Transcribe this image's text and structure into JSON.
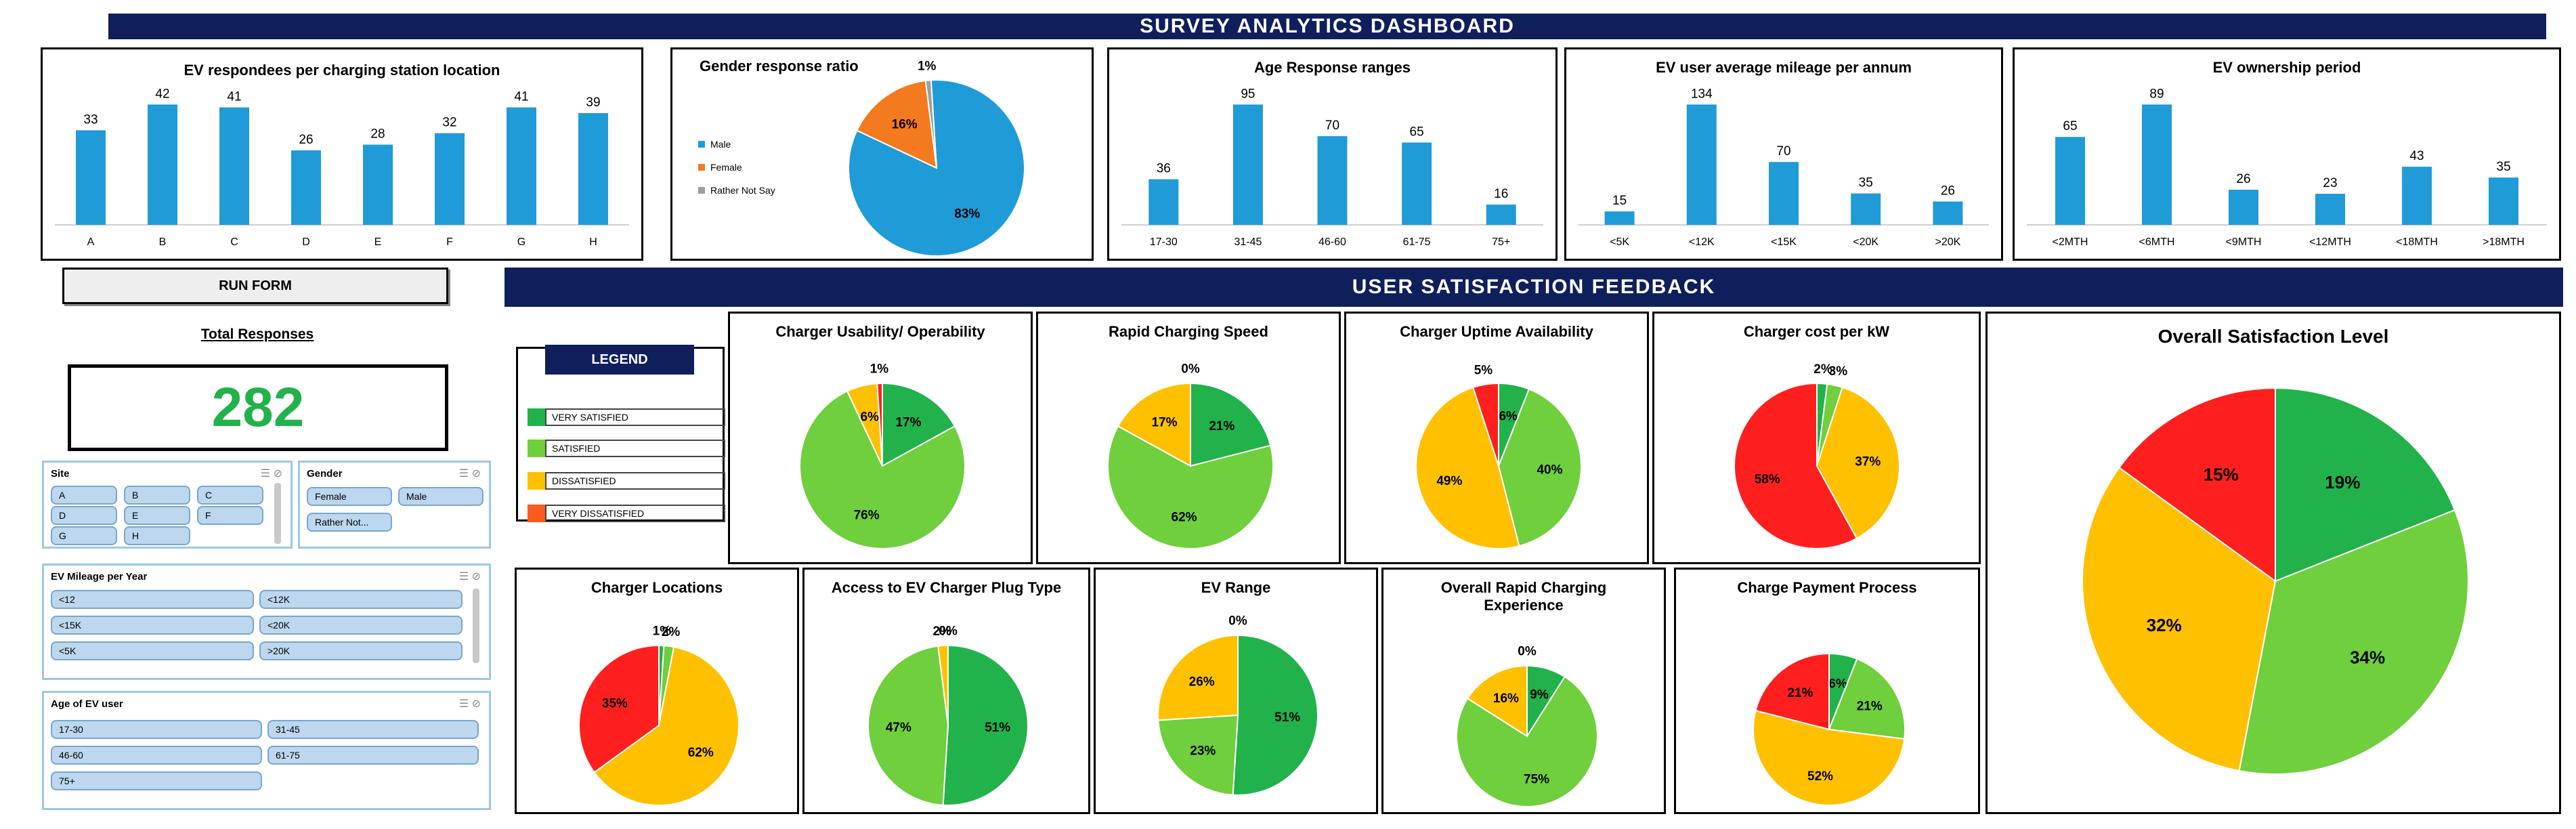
{
  "header": {
    "title": "SURVEY ANALYTICS DASHBOARD"
  },
  "feedback_banner": {
    "title": "USER SATISFACTION FEEDBACK"
  },
  "run_form": {
    "label": "RUN FORM"
  },
  "total": {
    "label": "Total Responses",
    "value": "282"
  },
  "colors": {
    "navy": "#0f1f5c",
    "bar": "#1f9bd8",
    "very_satisfied": "#22b24c",
    "satisfied": "#6fcf3c",
    "dissatisfied": "#ffc000",
    "very_dissatisfied": "#ff1f1f"
  },
  "legend": {
    "title": "LEGEND",
    "items": [
      {
        "label": "VERY SATISFIED",
        "color": "#22b24c"
      },
      {
        "label": "SATISFIED",
        "color": "#6fcf3c"
      },
      {
        "label": "DISSATISFIED",
        "color": "#ffc000"
      },
      {
        "label": "VERY DISSATISFIED",
        "color": "#ff5a1f"
      }
    ]
  },
  "slicers": {
    "site": {
      "title": "Site",
      "items": [
        "A",
        "B",
        "C",
        "D",
        "E",
        "F",
        "G",
        "H"
      ]
    },
    "gender": {
      "title": "Gender",
      "items": [
        "Female",
        "Male",
        "Rather Not..."
      ]
    },
    "mileage": {
      "title": "EV Mileage per Year",
      "items": [
        "<12",
        "<12K",
        "<15K",
        "<20K",
        "<5K",
        ">20K"
      ]
    },
    "age": {
      "title": "Age of EV user",
      "items": [
        "17-30",
        "31-45",
        "46-60",
        "61-75",
        "75+"
      ]
    }
  },
  "chart_data": [
    {
      "id": "station",
      "type": "bar",
      "title": "EV respondees  per charging station location",
      "categories": [
        "A",
        "B",
        "C",
        "D",
        "E",
        "F",
        "G",
        "H"
      ],
      "values": [
        33,
        42,
        41,
        26,
        28,
        32,
        41,
        39
      ]
    },
    {
      "id": "gender",
      "type": "pie",
      "title": "Gender response ratio",
      "slices": [
        {
          "label": "Male",
          "value": 83,
          "text": "83%",
          "color": "#1f9bd8"
        },
        {
          "label": "Female",
          "value": 16,
          "text": "16%",
          "color": "#f47a1f"
        },
        {
          "label": "Rather Not Say",
          "value": 1,
          "text": "1%",
          "color": "#9e9e9e"
        }
      ]
    },
    {
      "id": "age",
      "type": "bar",
      "title": "Age Response ranges",
      "categories": [
        "17-30",
        "31-45",
        "46-60",
        "61-75",
        "75+"
      ],
      "values": [
        36,
        95,
        70,
        65,
        16
      ]
    },
    {
      "id": "mileage",
      "type": "bar",
      "title": "EV user average mileage per annum",
      "categories": [
        "<5K",
        "<12K",
        "<15K",
        "<20K",
        ">20K"
      ],
      "values": [
        15,
        134,
        70,
        35,
        26
      ]
    },
    {
      "id": "ownership",
      "type": "bar",
      "title": "EV ownership period",
      "categories": [
        "<2MTH",
        "<6MTH",
        "<9MTH",
        "<12MTH",
        "<18MTH",
        ">18MTH"
      ],
      "values": [
        65,
        89,
        26,
        23,
        43,
        35
      ]
    },
    {
      "id": "usability",
      "type": "pie",
      "title": "Charger Usability/ Operability",
      "slices": [
        {
          "label": "Very Satisfied",
          "value": 17,
          "text": "17%",
          "color": "#22b24c"
        },
        {
          "label": "Satisfied",
          "value": 76,
          "text": "76%",
          "color": "#6fcf3c"
        },
        {
          "label": "Dissatisfied",
          "value": 6,
          "text": "6%",
          "color": "#ffc000"
        },
        {
          "label": "Very Dissatisfied",
          "value": 1,
          "text": "1%",
          "color": "#ff1f1f"
        }
      ]
    },
    {
      "id": "rapid_speed",
      "type": "pie",
      "title": "Rapid Charging Speed",
      "slices": [
        {
          "label": "Very Satisfied",
          "value": 21,
          "text": "21%",
          "color": "#22b24c"
        },
        {
          "label": "Satisfied",
          "value": 62,
          "text": "62%",
          "color": "#6fcf3c"
        },
        {
          "label": "Dissatisfied",
          "value": 17,
          "text": "17%",
          "color": "#ffc000"
        },
        {
          "label": "Very Dissatisfied",
          "value": 0,
          "text": "0%",
          "color": "#ff1f1f"
        }
      ]
    },
    {
      "id": "uptime",
      "type": "pie",
      "title": "Charger Uptime Availability",
      "slices": [
        {
          "label": "Very Satisfied",
          "value": 6,
          "text": "6%",
          "color": "#22b24c"
        },
        {
          "label": "Satisfied",
          "value": 40,
          "text": "40%",
          "color": "#6fcf3c"
        },
        {
          "label": "Dissatisfied",
          "value": 49,
          "text": "49%",
          "color": "#ffc000"
        },
        {
          "label": "Very Dissatisfied",
          "value": 5,
          "text": "5%",
          "color": "#ff1f1f"
        }
      ]
    },
    {
      "id": "cost",
      "type": "pie",
      "title": "Charger cost per kW",
      "slices": [
        {
          "label": "Very Satisfied",
          "value": 2,
          "text": "2%",
          "color": "#22b24c"
        },
        {
          "label": "Satisfied",
          "value": 3,
          "text": "3%",
          "color": "#6fcf3c"
        },
        {
          "label": "Dissatisfied",
          "value": 37,
          "text": "37%",
          "color": "#ffc000"
        },
        {
          "label": "Very Dissatisfied",
          "value": 58,
          "text": "58%",
          "color": "#ff1f1f"
        }
      ]
    },
    {
      "id": "overall",
      "type": "pie",
      "title": "Overall Satisfaction Level",
      "slices": [
        {
          "label": "Very Satisfied",
          "value": 19,
          "text": "19%",
          "color": "#22b24c"
        },
        {
          "label": "Satisfied",
          "value": 34,
          "text": "34%",
          "color": "#6fcf3c"
        },
        {
          "label": "Dissatisfied",
          "value": 32,
          "text": "32%",
          "color": "#ffc000"
        },
        {
          "label": "Very Dissatisfied",
          "value": 15,
          "text": "15%",
          "color": "#ff1f1f"
        }
      ]
    },
    {
      "id": "locations",
      "type": "pie",
      "title": "Charger Locations",
      "slices": [
        {
          "label": "Very Satisfied",
          "value": 1,
          "text": "1%",
          "color": "#22b24c"
        },
        {
          "label": "Satisfied",
          "value": 2,
          "text": "2%",
          "color": "#6fcf3c"
        },
        {
          "label": "Dissatisfied",
          "value": 62,
          "text": "62%",
          "color": "#ffc000"
        },
        {
          "label": "Very Dissatisfied",
          "value": 35,
          "text": "35%",
          "color": "#ff1f1f"
        }
      ]
    },
    {
      "id": "plug",
      "type": "pie",
      "title": "Access to EV Charger Plug Type",
      "slices": [
        {
          "label": "Very Satisfied",
          "value": 51,
          "text": "51%",
          "color": "#22b24c"
        },
        {
          "label": "Satisfied",
          "value": 47,
          "text": "47%",
          "color": "#6fcf3c"
        },
        {
          "label": "Dissatisfied",
          "value": 2,
          "text": "2%",
          "color": "#ffc000"
        },
        {
          "label": "Very Dissatisfied",
          "value": 0,
          "text": "0%",
          "color": "#ff1f1f"
        }
      ]
    },
    {
      "id": "range",
      "type": "pie",
      "title": "EV Range",
      "slices": [
        {
          "label": "Very Satisfied",
          "value": 51,
          "text": "51%",
          "color": "#22b24c"
        },
        {
          "label": "Satisfied",
          "value": 23,
          "text": "23%",
          "color": "#6fcf3c"
        },
        {
          "label": "Dissatisfied",
          "value": 26,
          "text": "26%",
          "color": "#ffc000"
        },
        {
          "label": "Very Dissatisfied",
          "value": 0,
          "text": "0%",
          "color": "#ff1f1f"
        }
      ]
    },
    {
      "id": "rapid_exp",
      "type": "pie",
      "title": "Overall Rapid Charging Experience",
      "slices": [
        {
          "label": "Very Satisfied",
          "value": 9,
          "text": "9%",
          "color": "#22b24c"
        },
        {
          "label": "Satisfied",
          "value": 75,
          "text": "75%",
          "color": "#6fcf3c"
        },
        {
          "label": "Dissatisfied",
          "value": 16,
          "text": "16%",
          "color": "#ffc000"
        },
        {
          "label": "Very Dissatisfied",
          "value": 0,
          "text": "0%",
          "color": "#ff1f1f"
        }
      ]
    },
    {
      "id": "payment",
      "type": "pie",
      "title": "Charge Payment Process",
      "slices": [
        {
          "label": "Very Satisfied",
          "value": 6,
          "text": "6%",
          "color": "#22b24c"
        },
        {
          "label": "Satisfied",
          "value": 21,
          "text": "21%",
          "color": "#6fcf3c"
        },
        {
          "label": "Dissatisfied",
          "value": 52,
          "text": "52%",
          "color": "#ffc000"
        },
        {
          "label": "Very Dissatisfied",
          "value": 21,
          "text": "21%",
          "color": "#ff1f1f"
        }
      ]
    }
  ]
}
